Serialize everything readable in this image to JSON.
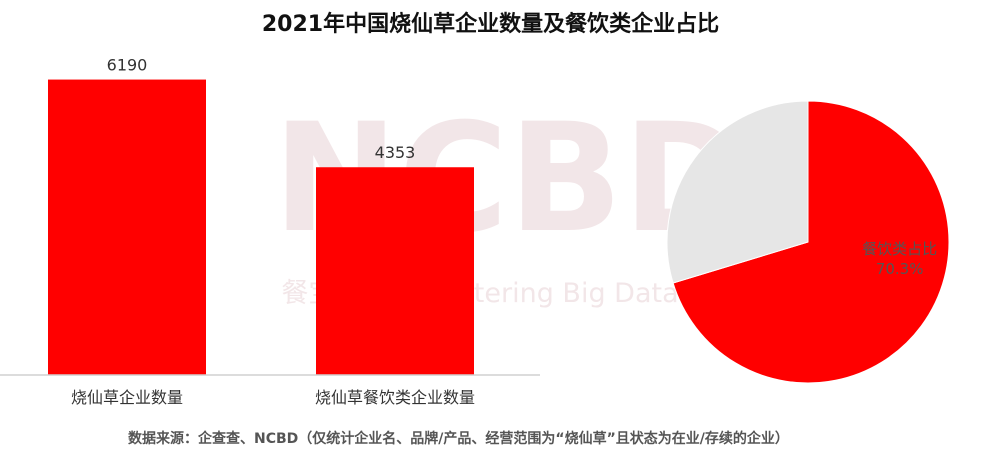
{
  "title": "2021年中国烧仙草企业数量及餐饮类企业占比",
  "source_note": "数据来源：企查查、NCBD（仅统计企业名、品牌/产品、经营范围为“烧仙草”且状态为在业/存续的企业）",
  "watermark": {
    "logo": "NCBD",
    "tagline": "餐宝典 New Catering Big Data"
  },
  "colors": {
    "bar": "#ff0000",
    "pie_main": "#ff0000",
    "pie_rest": "#e6e6e6",
    "watermark": "#fbe3e6"
  },
  "chart_data": [
    {
      "type": "bar",
      "categories": [
        "烧仙草企业数量",
        "烧仙草餐饮类企业数量"
      ],
      "values": [
        6190,
        4353
      ],
      "value_labels": [
        "6190",
        "4353"
      ],
      "ylim": [
        0,
        6600
      ],
      "grid": false,
      "legend": "none"
    },
    {
      "type": "pie",
      "slices": [
        {
          "label": "餐饮类占比",
          "value": 70.3,
          "value_label": "70.3%"
        },
        {
          "label": "",
          "value": 29.7
        }
      ],
      "start": "top",
      "direction": "clockwise"
    }
  ]
}
